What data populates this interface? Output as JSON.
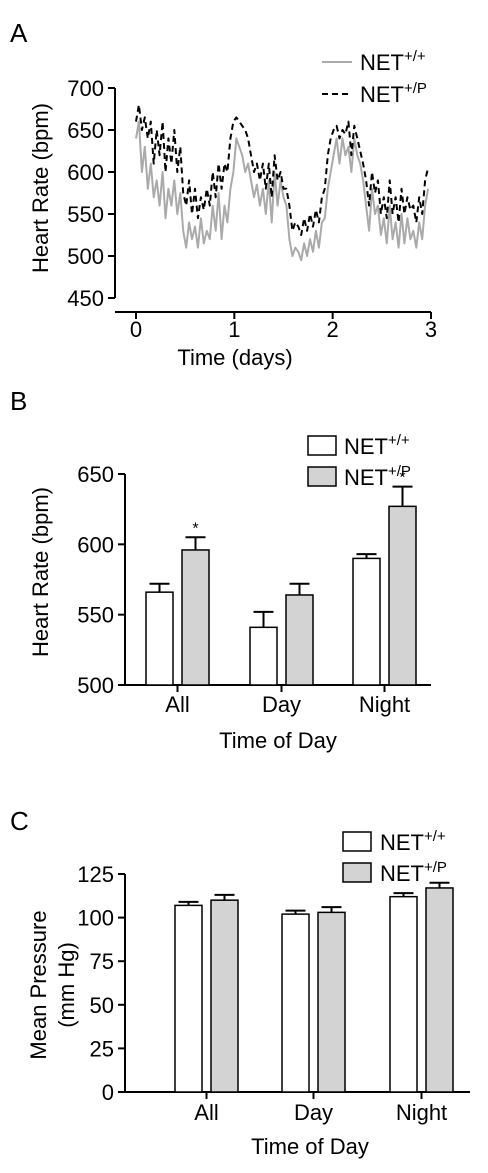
{
  "chart_data": [
    {
      "panel": "A",
      "type": "line",
      "xlabel": "Time (days)",
      "ylabel": "Heart Rate (bpm)",
      "xlim": [
        0,
        3
      ],
      "ylim": [
        450,
        700
      ],
      "xticks": [
        "0",
        "1",
        "2",
        "3"
      ],
      "yticks": [
        "450",
        "500",
        "550",
        "600",
        "650",
        "700"
      ],
      "legend_position": "top-right",
      "grid": false,
      "series": [
        {
          "name": "NET",
          "name_sup": "+/+",
          "color": "#aaaaaa",
          "dash": "solid",
          "x": [
            0,
            0.03,
            0.06,
            0.09,
            0.12,
            0.15,
            0.18,
            0.21,
            0.24,
            0.27,
            0.3,
            0.33,
            0.36,
            0.39,
            0.42,
            0.45,
            0.48,
            0.51,
            0.54,
            0.57,
            0.6,
            0.63,
            0.66,
            0.69,
            0.72,
            0.75,
            0.78,
            0.81,
            0.84,
            0.87,
            0.9,
            0.93,
            0.96,
            0.99,
            1.02,
            1.05,
            1.08,
            1.11,
            1.14,
            1.17,
            1.2,
            1.23,
            1.26,
            1.29,
            1.32,
            1.35,
            1.38,
            1.41,
            1.44,
            1.47,
            1.5,
            1.53,
            1.56,
            1.59,
            1.62,
            1.65,
            1.68,
            1.71,
            1.74,
            1.77,
            1.8,
            1.83,
            1.86,
            1.89,
            1.92,
            1.95,
            1.98,
            2.01,
            2.04,
            2.07,
            2.1,
            2.13,
            2.16,
            2.19,
            2.22,
            2.25,
            2.28,
            2.31,
            2.34,
            2.37,
            2.4,
            2.43,
            2.46,
            2.49,
            2.52,
            2.55,
            2.58,
            2.61,
            2.64,
            2.67,
            2.7,
            2.73,
            2.76,
            2.79,
            2.82,
            2.85,
            2.88,
            2.91,
            2.94,
            2.97
          ],
          "y": [
            640,
            660,
            600,
            630,
            580,
            610,
            570,
            590,
            560,
            600,
            545,
            580,
            560,
            590,
            550,
            575,
            530,
            510,
            540,
            520,
            535,
            510,
            545,
            515,
            530,
            520,
            560,
            530,
            575,
            520,
            560,
            540,
            580,
            600,
            640,
            630,
            620,
            600,
            610,
            590,
            570,
            585,
            560,
            580,
            550,
            590,
            540,
            600,
            560,
            590,
            570,
            560,
            520,
            500,
            510,
            505,
            495,
            515,
            500,
            520,
            505,
            530,
            510,
            540,
            545,
            580,
            600,
            620,
            640,
            610,
            640,
            620,
            630,
            600,
            640,
            620,
            610,
            590,
            560,
            530,
            580,
            550,
            560,
            525,
            545,
            515,
            560,
            520,
            540,
            510,
            550,
            515,
            545,
            520,
            530,
            510,
            540,
            520,
            560,
            580
          ]
        },
        {
          "name": "NET",
          "name_sup": "+/P",
          "color": "#000000",
          "dash": "dashed",
          "x": [
            0,
            0.03,
            0.06,
            0.09,
            0.12,
            0.15,
            0.18,
            0.21,
            0.24,
            0.27,
            0.3,
            0.33,
            0.36,
            0.39,
            0.42,
            0.45,
            0.48,
            0.51,
            0.54,
            0.57,
            0.6,
            0.63,
            0.66,
            0.69,
            0.72,
            0.75,
            0.78,
            0.81,
            0.84,
            0.87,
            0.9,
            0.93,
            0.96,
            0.99,
            1.02,
            1.05,
            1.08,
            1.11,
            1.14,
            1.17,
            1.2,
            1.23,
            1.26,
            1.29,
            1.32,
            1.35,
            1.38,
            1.41,
            1.44,
            1.47,
            1.5,
            1.53,
            1.56,
            1.59,
            1.62,
            1.65,
            1.68,
            1.71,
            1.74,
            1.77,
            1.8,
            1.83,
            1.86,
            1.89,
            1.92,
            1.95,
            1.98,
            2.01,
            2.04,
            2.07,
            2.1,
            2.13,
            2.16,
            2.19,
            2.22,
            2.25,
            2.28,
            2.31,
            2.34,
            2.37,
            2.4,
            2.43,
            2.46,
            2.49,
            2.52,
            2.55,
            2.58,
            2.61,
            2.64,
            2.67,
            2.7,
            2.73,
            2.76,
            2.79,
            2.82,
            2.85,
            2.88,
            2.91,
            2.94,
            2.97
          ],
          "y": [
            660,
            680,
            650,
            665,
            640,
            660,
            610,
            650,
            620,
            660,
            600,
            640,
            610,
            650,
            600,
            630,
            575,
            560,
            590,
            550,
            580,
            545,
            570,
            555,
            580,
            560,
            600,
            570,
            610,
            580,
            610,
            600,
            640,
            660,
            665,
            660,
            655,
            650,
            640,
            620,
            600,
            610,
            590,
            610,
            580,
            610,
            570,
            620,
            590,
            600,
            580,
            580,
            560,
            530,
            540,
            535,
            525,
            545,
            530,
            550,
            535,
            555,
            540,
            570,
            580,
            620,
            640,
            650,
            655,
            640,
            650,
            645,
            660,
            620,
            655,
            640,
            625,
            610,
            590,
            560,
            600,
            575,
            590,
            550,
            570,
            545,
            590,
            550,
            570,
            540,
            580,
            550,
            570,
            555,
            560,
            540,
            570,
            550,
            590,
            605
          ]
        }
      ]
    },
    {
      "panel": "B",
      "type": "bar",
      "xlabel": "Time of Day",
      "ylabel": "Heart Rate (bpm)",
      "categories": [
        "All",
        "Day",
        "Night"
      ],
      "ylim": [
        500,
        650
      ],
      "yticks": [
        "500",
        "550",
        "600",
        "650"
      ],
      "legend_position": "top-right",
      "grid": false,
      "significance_marker": "*",
      "series": [
        {
          "name": "NET",
          "name_sup": "+/+",
          "color": "#ffffff",
          "values": [
            566,
            541,
            590
          ],
          "errors": [
            6,
            11,
            3
          ],
          "significant": [
            false,
            false,
            false
          ]
        },
        {
          "name": "NET",
          "name_sup": "+/P",
          "color": "#d3d3d3",
          "values": [
            596,
            564,
            627
          ],
          "errors": [
            9,
            8,
            14
          ],
          "significant": [
            true,
            false,
            true
          ]
        }
      ]
    },
    {
      "panel": "C",
      "type": "bar",
      "xlabel": "Time of Day",
      "ylabel_lines": [
        "Mean Pressure",
        "(mm Hg)"
      ],
      "categories": [
        "All",
        "Day",
        "Night"
      ],
      "ylim": [
        0,
        125
      ],
      "yticks": [
        "0",
        "25",
        "50",
        "75",
        "100",
        "125"
      ],
      "legend_position": "top-right",
      "grid": false,
      "series": [
        {
          "name": "NET",
          "name_sup": "+/+",
          "color": "#ffffff",
          "values": [
            107,
            102,
            112
          ],
          "errors": [
            2,
            2,
            2
          ],
          "significant": [
            false,
            false,
            false
          ]
        },
        {
          "name": "NET",
          "name_sup": "+/P",
          "color": "#d3d3d3",
          "values": [
            110,
            103,
            117
          ],
          "errors": [
            3,
            3,
            3
          ],
          "significant": [
            false,
            false,
            false
          ]
        }
      ]
    }
  ]
}
